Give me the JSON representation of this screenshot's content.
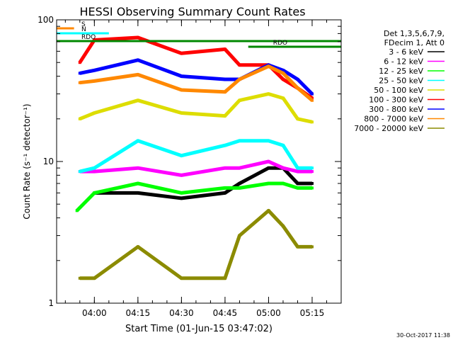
{
  "chart_data": {
    "type": "line",
    "title": "HESSI Observing Summary Count Rates",
    "xlabel": "Start Time (01-Jun-15 03:47:02)",
    "ylabel": "Count Rate (s⁻¹ detector⁻¹)",
    "yscale": "log",
    "ylim": [
      1,
      100
    ],
    "xlim": [
      "03:47",
      "05:25"
    ],
    "x_ticks": [
      "04:00",
      "04:15",
      "04:30",
      "04:45",
      "05:00",
      "05:15"
    ],
    "y_ticks": [
      "1",
      "10",
      "100"
    ],
    "legend_header": [
      "Det 1,3,5,6,7,9,",
      "FDecim 1, Att 0"
    ],
    "legend_position": "right",
    "series": [
      {
        "name": "3 - 6 keV",
        "color": "#000000",
        "x": [
          "04:00",
          "04:15",
          "04:30",
          "04:45",
          "04:50",
          "05:00",
          "05:05",
          "05:10",
          "05:15"
        ],
        "values": [
          6,
          6,
          5.5,
          6,
          7,
          9,
          9,
          7,
          7
        ]
      },
      {
        "name": "6 - 12 keV",
        "color": "#ff00ff",
        "x": [
          "03:55",
          "04:00",
          "04:15",
          "04:30",
          "04:45",
          "04:50",
          "05:00",
          "05:05",
          "05:10",
          "05:15"
        ],
        "values": [
          8.5,
          8.5,
          9,
          8,
          9,
          9,
          10,
          9,
          8.5,
          8.5
        ]
      },
      {
        "name": "12 - 25 keV",
        "color": "#00ff00",
        "x": [
          "03:54",
          "04:00",
          "04:15",
          "04:30",
          "04:45",
          "04:50",
          "05:00",
          "05:05",
          "05:10",
          "05:15"
        ],
        "values": [
          4.5,
          6,
          7,
          6,
          6.5,
          6.5,
          7,
          7,
          6.5,
          6.5
        ]
      },
      {
        "name": "25 - 50 keV",
        "color": "#00ffff",
        "x": [
          "03:55",
          "04:00",
          "04:15",
          "04:30",
          "04:45",
          "04:50",
          "05:00",
          "05:05",
          "05:10",
          "05:15"
        ],
        "values": [
          8.5,
          9,
          14,
          11,
          13,
          14,
          14,
          13,
          9,
          9
        ]
      },
      {
        "name": "50 - 100 keV",
        "color": "#dddd00",
        "x": [
          "03:55",
          "04:00",
          "04:15",
          "04:30",
          "04:45",
          "04:50",
          "05:00",
          "05:05",
          "05:10",
          "05:15"
        ],
        "values": [
          20,
          22,
          27,
          22,
          21,
          27,
          30,
          28,
          20,
          19
        ]
      },
      {
        "name": "100 - 300 keV",
        "color": "#ff0000",
        "x": [
          "03:55",
          "04:00",
          "04:15",
          "04:30",
          "04:45",
          "04:50",
          "05:00",
          "05:05",
          "05:10",
          "05:15"
        ],
        "values": [
          50,
          72,
          75,
          58,
          62,
          48,
          48,
          38,
          33,
          28
        ]
      },
      {
        "name": "300 - 800 keV",
        "color": "#0000ff",
        "x": [
          "03:55",
          "04:00",
          "04:15",
          "04:30",
          "04:45",
          "04:50",
          "05:00",
          "05:05",
          "05:10",
          "05:15"
        ],
        "values": [
          42,
          44,
          52,
          40,
          38,
          38,
          48,
          44,
          38,
          30
        ]
      },
      {
        "name": "800 - 7000 keV",
        "color": "#ff8800",
        "x": [
          "03:55",
          "04:00",
          "04:15",
          "04:30",
          "04:45",
          "04:50",
          "05:00",
          "05:05",
          "05:10",
          "05:15"
        ],
        "values": [
          36,
          37,
          41,
          32,
          31,
          38,
          47,
          42,
          33,
          27
        ]
      },
      {
        "name": "7000 - 20000 keV",
        "color": "#8b8b00",
        "x": [
          "03:55",
          "04:00",
          "04:15",
          "04:30",
          "04:45",
          "04:50",
          "05:00",
          "05:05",
          "05:10",
          "05:15"
        ],
        "values": [
          1.5,
          1.5,
          2.5,
          1.5,
          1.5,
          3,
          4.5,
          3.5,
          2.5,
          2.5
        ]
      }
    ],
    "state_bars": [
      {
        "label": "S",
        "color": "#ff8800",
        "start": "03:47",
        "end": "03:53"
      },
      {
        "label": "N",
        "color": "#00ffff",
        "start": "03:47",
        "end": "04:05"
      },
      {
        "label": "RDO",
        "color": "#008800",
        "start": "03:47",
        "end": "05:25"
      },
      {
        "label": "RDO",
        "color": "#008800",
        "start": "04:53",
        "end": "05:25"
      }
    ],
    "timestamp": "30-Oct-2017 11:38"
  }
}
